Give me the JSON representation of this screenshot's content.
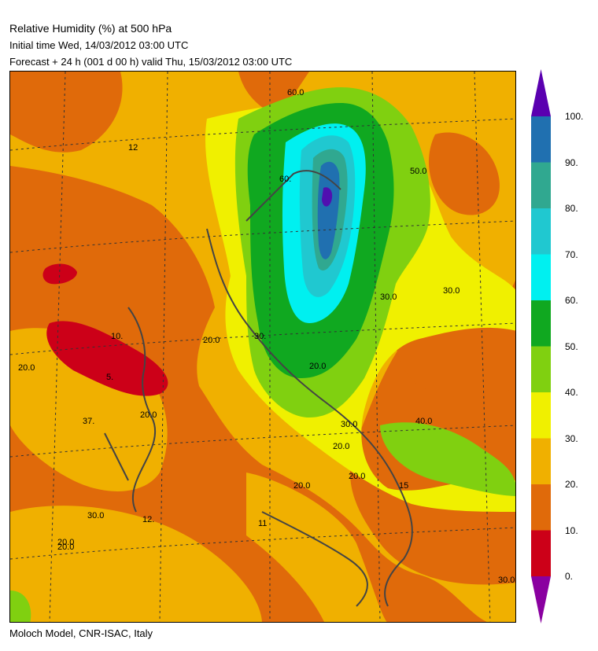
{
  "header": {
    "title": "Relative Humidity (%) at 500 hPa",
    "initial_time": "Initial time  Wed, 14/03/2012  03:00 UTC",
    "forecast": "Forecast  +  24 h   (001 d 00 h)  valid Thu, 15/03/2012 03:00 UTC"
  },
  "footer": "Moloch Model, CNR-ISAC, Italy",
  "colorbar": {
    "levels": [
      "0.",
      "10.",
      "20.",
      "30.",
      "40.",
      "50.",
      "60.",
      "70.",
      "80.",
      "90.",
      "100."
    ],
    "colors": [
      "#cc0018",
      "#e06a0a",
      "#f0b000",
      "#f0f000",
      "#80d010",
      "#10a820",
      "#00f0f0",
      "#20c8d0",
      "#30a890",
      "#2070b0",
      "#5010b0"
    ],
    "under_color": "#8a00a0",
    "over_color": "#5a00b0"
  },
  "map": {
    "contour_labels": [
      "12",
      "10.",
      "5.",
      "37.",
      "20.0",
      "20.0",
      "20.0",
      "20.0",
      "20.0",
      "20.0",
      "20.0",
      "20.0",
      "30.0",
      "30.0",
      "30.0",
      "30.0",
      "30.0",
      "30.",
      "40.0",
      "50.0",
      "60.0",
      "60.",
      "12.",
      "11",
      "15",
      "20.0"
    ]
  }
}
